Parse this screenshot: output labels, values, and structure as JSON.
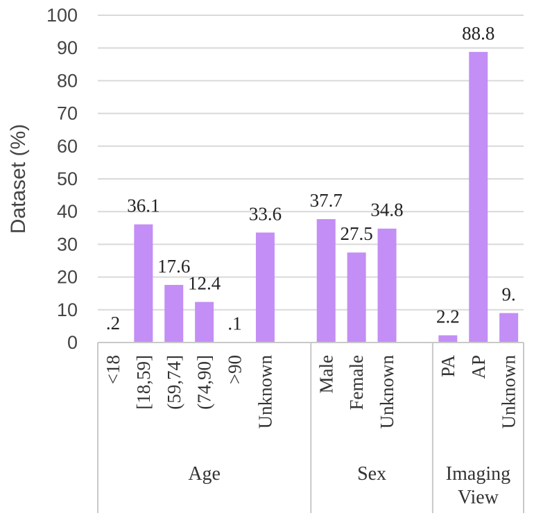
{
  "chart_data": {
    "type": "bar",
    "ylabel": "Dataset (%)",
    "ylim": [
      0,
      100
    ],
    "yticks": [
      0,
      10,
      20,
      30,
      40,
      50,
      60,
      70,
      80,
      90,
      100
    ],
    "grid": true,
    "color": "#c38ef5",
    "groups": [
      {
        "name": "Age",
        "categories": [
          "<18",
          "[18,59]",
          "(59,74]",
          "(74,90]",
          ">90",
          "Unknown"
        ],
        "values": [
          0.2,
          36.1,
          17.6,
          12.4,
          0.1,
          33.6
        ],
        "labels": [
          ".2",
          "36.1",
          "17.6",
          "12.4",
          ".1",
          "33.6"
        ]
      },
      {
        "name": "Sex",
        "categories": [
          "Male",
          "Female",
          "Unknown"
        ],
        "values": [
          37.7,
          27.5,
          34.8
        ],
        "labels": [
          "37.7",
          "27.5",
          "34.8"
        ]
      },
      {
        "name": "Imaging View",
        "name_lines": [
          "Imaging",
          "View"
        ],
        "categories": [
          "PA",
          "AP",
          "Unknown"
        ],
        "values": [
          2.2,
          88.8,
          9.0
        ],
        "labels": [
          "2.2",
          "88.8",
          "9."
        ]
      }
    ]
  }
}
